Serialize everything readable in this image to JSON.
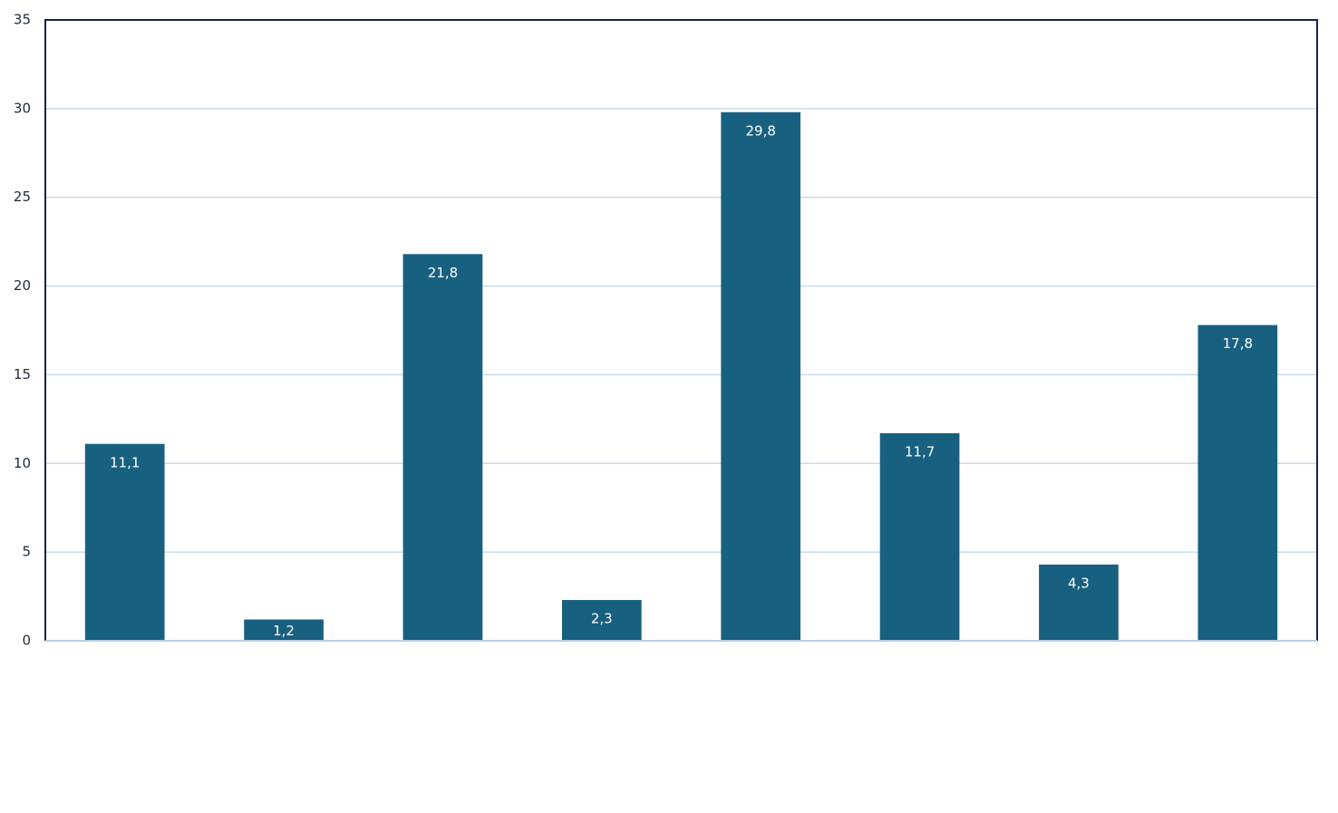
{
  "chart_data": {
    "type": "bar",
    "categories": [
      null,
      null,
      null,
      null,
      null,
      null,
      null,
      null
    ],
    "values": [
      11.1,
      1.2,
      21.8,
      2.3,
      29.8,
      11.7,
      4.3,
      17.8
    ],
    "value_labels": [
      "11,1",
      "1,2",
      "21,8",
      "2,3",
      "29,8",
      "11,7",
      "4,3",
      "17,8"
    ],
    "color": "#18607f",
    "ylim": [
      0,
      35
    ],
    "yticks": [
      0,
      5,
      10,
      15,
      20,
      25,
      30,
      35
    ],
    "grid": true
  }
}
